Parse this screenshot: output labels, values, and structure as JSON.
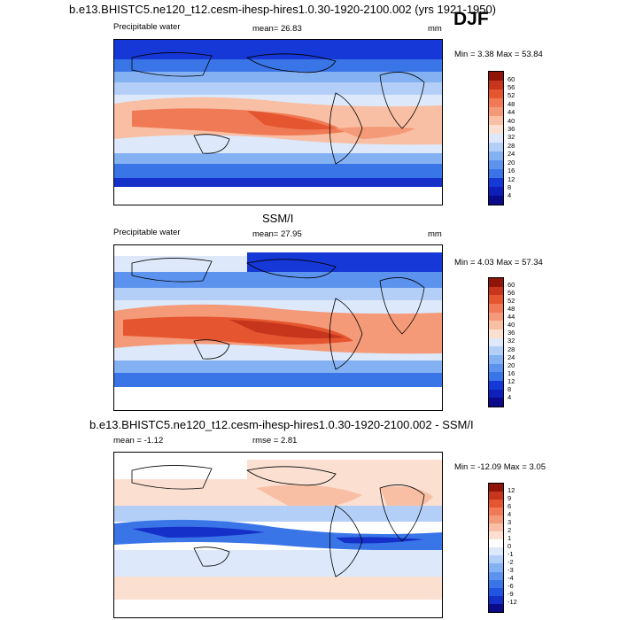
{
  "header": {
    "title": "b.e13.BHISTC5.ne120_t12.cesm-ihesp-hires1.0.30-1920-2100.002 (yrs 1921-1950)",
    "season": "DJF"
  },
  "panels": [
    {
      "id": "model",
      "variable": "Precipitable water",
      "mean_label": "mean=",
      "mean": "26.83",
      "units": "mm",
      "min_label": "Min =",
      "min": "3.38",
      "max_label": "Max =",
      "max": "53.84",
      "colorbar_ticks": [
        "60",
        "56",
        "52",
        "48",
        "44",
        "40",
        "36",
        "32",
        "28",
        "24",
        "20",
        "16",
        "12",
        "8",
        "4"
      ]
    },
    {
      "id": "obs",
      "title": "SSM/I",
      "variable": "Precipitable water",
      "mean_label": "mean=",
      "mean": "27.95",
      "units": "mm",
      "min_label": "Min =",
      "min": "4.03",
      "max_label": "Max =",
      "max": "57.34",
      "colorbar_ticks": [
        "60",
        "56",
        "52",
        "48",
        "44",
        "40",
        "36",
        "32",
        "28",
        "24",
        "20",
        "16",
        "12",
        "8",
        "4"
      ]
    },
    {
      "id": "diff",
      "title": "b.e13.BHISTC5.ne120_t12.cesm-ihesp-hires1.0.30-1920-2100.002 - SSM/I",
      "mean_label": "mean =",
      "mean": "-1.12",
      "rmse_label": "rmse =",
      "rmse": "2.81",
      "min_label": "Min =",
      "min": "-12.09",
      "max_label": "Max =",
      "max": "3.05",
      "colorbar_ticks": [
        "12",
        "9",
        "6",
        "4",
        "3",
        "2",
        "1",
        "0",
        "-1",
        "-2",
        "-3",
        "-4",
        "-6",
        "-9",
        "-12"
      ]
    }
  ],
  "colors": {
    "pw_scale": [
      "#0b0b8a",
      "#0d1fb8",
      "#1538d6",
      "#1f55e0",
      "#3a75e8",
      "#5b93ee",
      "#84b1f2",
      "#b3cff7",
      "#dde9fb",
      "#fbe0d2",
      "#f8bfa4",
      "#f49a78",
      "#ef7a55",
      "#e5552f",
      "#c7351d",
      "#8f1409"
    ],
    "diff_scale": [
      "#0b0b8a",
      "#1530c9",
      "#1f55e0",
      "#3a75e8",
      "#5b93ee",
      "#84b1f2",
      "#b3cff7",
      "#dde9fb",
      "#ffffff",
      "#fbe0d2",
      "#f8bfa4",
      "#f49a78",
      "#ef7a55",
      "#e5552f",
      "#c7351d",
      "#8f1409"
    ]
  }
}
